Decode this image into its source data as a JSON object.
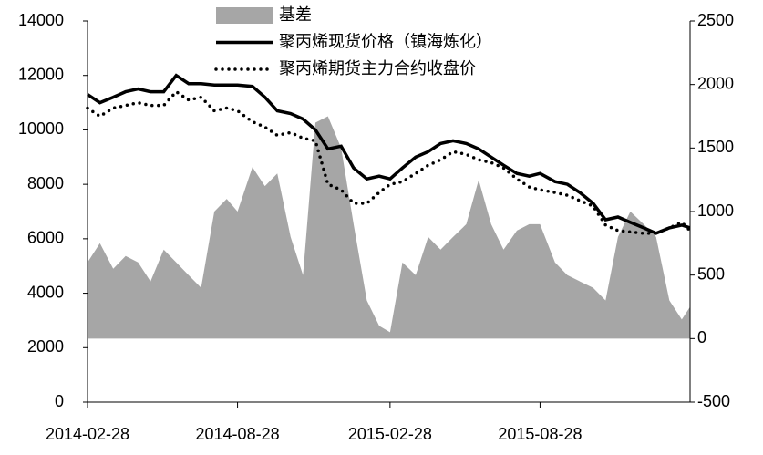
{
  "chart_data": {
    "type": "line",
    "x": [
      "2014-02-28",
      "2014-03-15",
      "2014-03-31",
      "2014-04-15",
      "2014-04-30",
      "2014-05-15",
      "2014-05-31",
      "2014-06-15",
      "2014-06-30",
      "2014-07-15",
      "2014-07-31",
      "2014-08-15",
      "2014-08-28",
      "2014-09-15",
      "2014-09-30",
      "2014-10-15",
      "2014-10-31",
      "2014-11-15",
      "2014-11-30",
      "2014-12-15",
      "2014-12-31",
      "2015-01-15",
      "2015-01-31",
      "2015-02-15",
      "2015-02-28",
      "2015-03-15",
      "2015-03-31",
      "2015-04-15",
      "2015-04-30",
      "2015-05-15",
      "2015-05-31",
      "2015-06-15",
      "2015-06-30",
      "2015-07-15",
      "2015-07-31",
      "2015-08-15",
      "2015-08-28",
      "2015-09-15",
      "2015-09-30",
      "2015-10-15",
      "2015-10-31",
      "2015-11-15",
      "2015-11-30",
      "2015-12-15",
      "2015-12-31",
      "2016-01-15",
      "2016-01-31",
      "2016-02-15",
      "2016-02-25"
    ],
    "series": [
      {
        "name": "基差",
        "color": "#a6a6a6",
        "axis": "y2",
        "kind": "area",
        "values": [
          600,
          750,
          550,
          650,
          600,
          450,
          700,
          600,
          500,
          400,
          1000,
          1100,
          1000,
          1350,
          1200,
          1300,
          800,
          500,
          1700,
          1750,
          1500,
          900,
          300,
          100,
          50,
          600,
          500,
          800,
          700,
          800,
          900,
          1250,
          900,
          700,
          850,
          900,
          900,
          600,
          500,
          450,
          400,
          300,
          800,
          1000,
          900,
          800,
          300,
          150,
          250
        ]
      },
      {
        "name": "聚丙烯现货价格（镇海炼化）",
        "color": "#000000",
        "kind": "solid",
        "values": [
          11300,
          11000,
          11200,
          11400,
          11500,
          11400,
          11400,
          12000,
          11700,
          11700,
          11650,
          11650,
          11650,
          11600,
          11200,
          10700,
          10600,
          10400,
          10000,
          9300,
          9400,
          8600,
          8200,
          8300,
          8200,
          8600,
          9000,
          9200,
          9500,
          9600,
          9500,
          9300,
          9000,
          8700,
          8400,
          8300,
          8400,
          8100,
          8000,
          7700,
          7300,
          6700,
          6800,
          6600,
          6400,
          6200,
          6400,
          6500,
          6400
        ]
      },
      {
        "name": "聚丙烯期货主力合约收盘价",
        "color": "#000000",
        "kind": "dotted",
        "values": [
          10800,
          10500,
          10800,
          10900,
          11000,
          10900,
          10900,
          11400,
          11100,
          11200,
          10700,
          10800,
          10700,
          10300,
          10100,
          9800,
          9900,
          9700,
          9600,
          8000,
          7800,
          7300,
          7300,
          7700,
          8000,
          8100,
          8400,
          8700,
          8900,
          9200,
          9100,
          8900,
          8800,
          8600,
          8200,
          7900,
          7800,
          7700,
          7600,
          7400,
          7200,
          6500,
          6300,
          6250,
          6200,
          6200,
          6400,
          6600,
          6300
        ]
      }
    ],
    "xlim": [
      "2014-02-28",
      "2016-02-25"
    ],
    "xticks": [
      "2014-02-28",
      "2014-08-28",
      "2015-02-28",
      "2015-08-28"
    ],
    "ylim": [
      0,
      14000
    ],
    "yticks": [
      0,
      2000,
      4000,
      6000,
      8000,
      10000,
      12000,
      14000
    ],
    "y2lim": [
      -500,
      2500
    ],
    "y2ticks": [
      -500,
      0,
      500,
      1000,
      1500,
      2000,
      2500
    ],
    "legend": "top"
  }
}
